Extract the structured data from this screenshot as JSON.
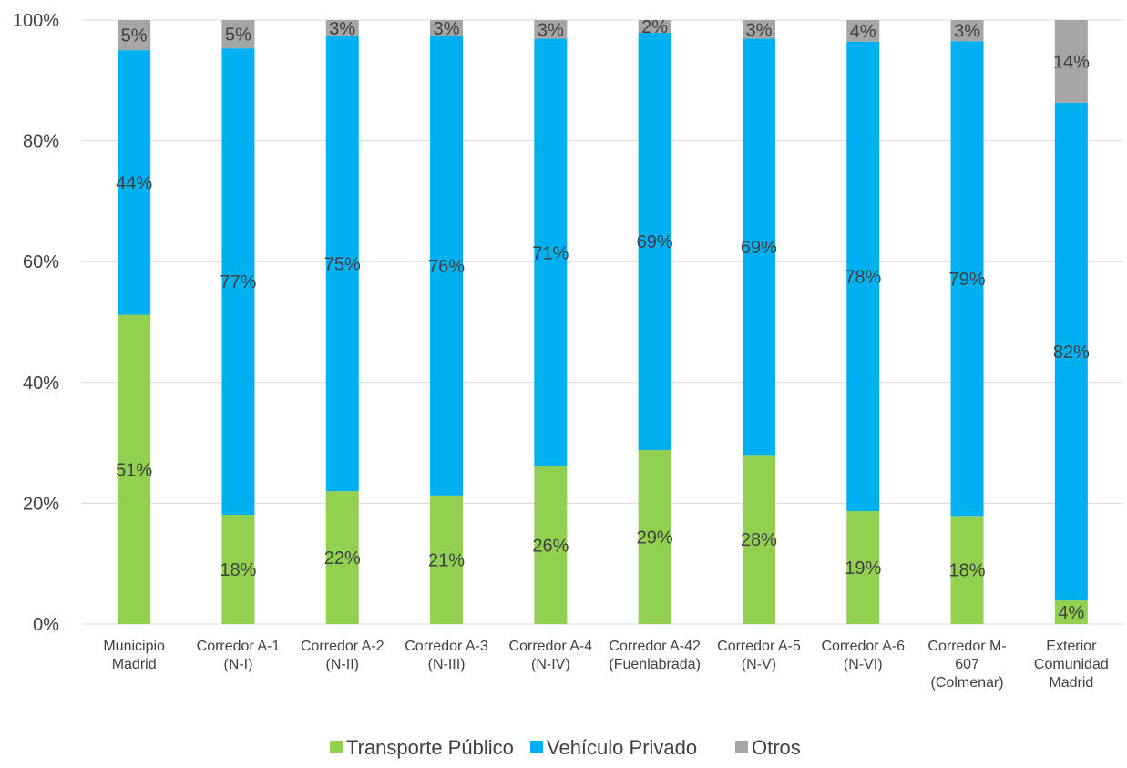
{
  "chart_data": {
    "type": "bar",
    "stacked": true,
    "percent": true,
    "title": "",
    "xlabel": "",
    "ylabel": "",
    "ylim": [
      0,
      100
    ],
    "yticks": [
      "0%",
      "20%",
      "40%",
      "60%",
      "80%",
      "100%"
    ],
    "grid": true,
    "legend_position": "bottom",
    "categories": [
      [
        "Municipio",
        "Madrid"
      ],
      [
        "Corredor A-1",
        "(N-I)"
      ],
      [
        "Corredor A-2",
        "(N-II)"
      ],
      [
        "Corredor A-3",
        "(N-III)"
      ],
      [
        "Corredor A-4",
        "(N-IV)"
      ],
      [
        "Corredor A-42",
        "(Fuenlabrada)"
      ],
      [
        "Corredor A-5",
        "(N-V)"
      ],
      [
        "Corredor A-6",
        "(N-VI)"
      ],
      [
        "Corredor M-",
        "607",
        "(Colmenar)"
      ],
      [
        "Exterior",
        "Comunidad",
        "Madrid"
      ]
    ],
    "series": [
      {
        "name": "Transporte Público",
        "color": "#92d050",
        "values": [
          51.2,
          18.1,
          22.0,
          21.3,
          26.1,
          28.8,
          28.0,
          18.7,
          17.9,
          3.9
        ],
        "labels": [
          "51%",
          "18%",
          "22%",
          "21%",
          "26%",
          "29%",
          "28%",
          "19%",
          "18%",
          "4%"
        ]
      },
      {
        "name": "Vehículo Privado",
        "color": "#00b0f0",
        "values": [
          43.8,
          77.2,
          75.3,
          76.0,
          70.8,
          69.1,
          68.9,
          77.7,
          78.6,
          82.4
        ],
        "labels": [
          "44%",
          "77%",
          "75%",
          "76%",
          "71%",
          "69%",
          "69%",
          "78%",
          "79%",
          "82%"
        ]
      },
      {
        "name": "Otros",
        "color": "#a6a6a6",
        "values": [
          5.0,
          4.7,
          2.7,
          2.7,
          3.1,
          2.1,
          3.1,
          3.6,
          3.5,
          13.7
        ],
        "labels": [
          "5%",
          "5%",
          "3%",
          "3%",
          "3%",
          "2%",
          "3%",
          "4%",
          "3%",
          "14%"
        ]
      }
    ]
  }
}
